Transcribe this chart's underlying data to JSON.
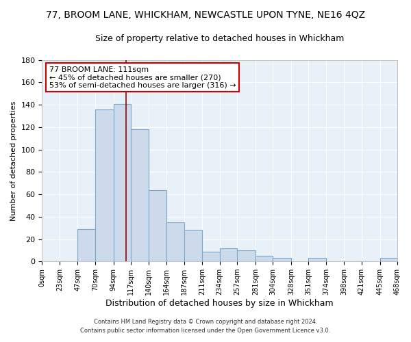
{
  "title": "77, BROOM LANE, WHICKHAM, NEWCASTLE UPON TYNE, NE16 4QZ",
  "subtitle": "Size of property relative to detached houses in Whickham",
  "xlabel": "Distribution of detached houses by size in Whickham",
  "ylabel": "Number of detached properties",
  "bar_edges": [
    0,
    23,
    47,
    70,
    94,
    117,
    140,
    164,
    187,
    211,
    234,
    257,
    281,
    304,
    328,
    351,
    374,
    398,
    421,
    445,
    468
  ],
  "bar_heights": [
    0,
    0,
    29,
    136,
    141,
    118,
    64,
    35,
    28,
    9,
    12,
    10,
    5,
    3,
    0,
    3,
    0,
    0,
    0,
    3
  ],
  "bar_color": "#ccdaeb",
  "bar_edge_color": "#7aaac8",
  "property_line_x": 111,
  "property_line_color": "#990000",
  "annotation_line1": "77 BROOM LANE: 111sqm",
  "annotation_line2": "← 45% of detached houses are smaller (270)",
  "annotation_line3": "53% of semi-detached houses are larger (316) →",
  "annotation_box_color": "#cc0000",
  "ylim": [
    0,
    180
  ],
  "yticks": [
    0,
    20,
    40,
    60,
    80,
    100,
    120,
    140,
    160,
    180
  ],
  "xtick_labels": [
    "0sqm",
    "23sqm",
    "47sqm",
    "70sqm",
    "94sqm",
    "117sqm",
    "140sqm",
    "164sqm",
    "187sqm",
    "211sqm",
    "234sqm",
    "257sqm",
    "281sqm",
    "304sqm",
    "328sqm",
    "351sqm",
    "374sqm",
    "398sqm",
    "421sqm",
    "445sqm",
    "468sqm"
  ],
  "footer_line1": "Contains HM Land Registry data © Crown copyright and database right 2024.",
  "footer_line2": "Contains public sector information licensed under the Open Government Licence v3.0.",
  "background_color": "#ffffff",
  "plot_background": "#e8f0f8",
  "grid_color": "#ffffff",
  "title_fontsize": 10,
  "subtitle_fontsize": 9,
  "ylabel_fontsize": 8,
  "xlabel_fontsize": 9
}
